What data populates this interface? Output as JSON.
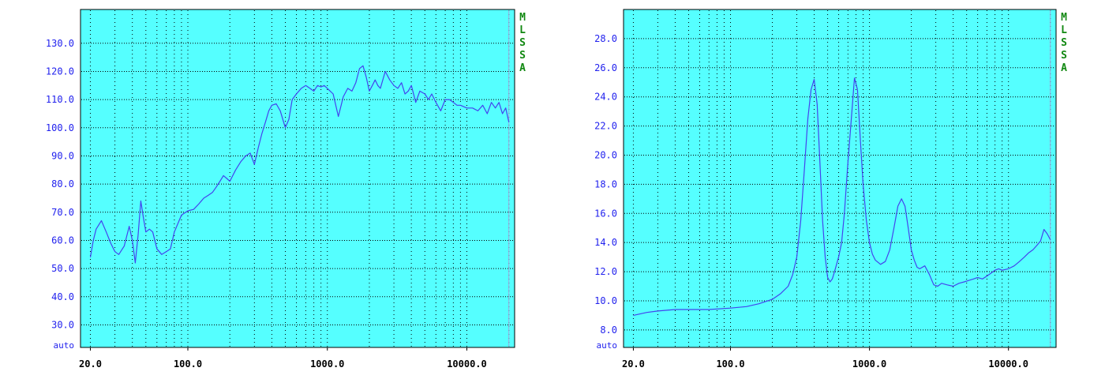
{
  "chart_data": [
    {
      "type": "line",
      "title": "",
      "xlabel": "",
      "ylabel": "",
      "xscale": "log",
      "xlim": [
        17,
        22000
      ],
      "ylim": [
        22,
        142
      ],
      "grid": true,
      "ytick_labels": [
        "130.0",
        "120.0",
        "110.0",
        "100.0",
        "90.0",
        "80.0",
        "70.0",
        "60.0",
        "50.0",
        "40.0",
        "30.0"
      ],
      "ytick_values": [
        130,
        120,
        110,
        100,
        90,
        80,
        70,
        60,
        50,
        40,
        30
      ],
      "ybottom_label": "auto",
      "xtick_labels": [
        "20.0",
        "100.0",
        "1000.0",
        "10000.0"
      ],
      "xtick_values": [
        20,
        100,
        1000,
        10000
      ],
      "side_label": [
        "M",
        "L",
        "S",
        "S",
        "A"
      ],
      "colors": {
        "background": "#55ffff",
        "line": "#4444ee",
        "axis_labels": "#2222ee",
        "side_label": "#118811"
      },
      "series": [
        {
          "x": [
            20,
            21,
            22,
            24,
            26,
            28,
            30,
            32,
            35,
            38,
            40,
            42,
            44,
            46,
            48,
            50,
            53,
            56,
            60,
            65,
            70,
            75,
            80,
            90,
            100,
            110,
            120,
            130,
            140,
            150,
            160,
            170,
            180,
            190,
            200,
            220,
            240,
            260,
            280,
            300,
            320,
            340,
            360,
            380,
            400,
            430,
            460,
            500,
            530,
            560,
            600,
            650,
            700,
            750,
            800,
            850,
            900,
            950,
            1000,
            1100,
            1200,
            1300,
            1400,
            1500,
            1600,
            1700,
            1800,
            1900,
            2000,
            2100,
            2200,
            2300,
            2400,
            2600,
            2800,
            3000,
            3200,
            3400,
            3600,
            3800,
            4000,
            4300,
            4600,
            5000,
            5300,
            5600,
            6000,
            6500,
            7000,
            7500,
            8000,
            8500,
            9000,
            10000,
            11000,
            12000,
            13000,
            14000,
            15000,
            16000,
            17000,
            18000,
            19000,
            20000
          ],
          "y": [
            54,
            60,
            64,
            67,
            63,
            59,
            56,
            55,
            58,
            65,
            60,
            52,
            62,
            74,
            68,
            63,
            64,
            63,
            57,
            55,
            56,
            57,
            63,
            69,
            70.5,
            71,
            73,
            75,
            76,
            77,
            79,
            81,
            83,
            82,
            81,
            85,
            88,
            90,
            91,
            87,
            93,
            98,
            102,
            106,
            108,
            108.5,
            106,
            100,
            103,
            110,
            112,
            114,
            115,
            114,
            113,
            115,
            114.5,
            115,
            114,
            112,
            104,
            111,
            114,
            113,
            116,
            121,
            122,
            118,
            113,
            115,
            117,
            115,
            114,
            120,
            117,
            115,
            114,
            116,
            112,
            113,
            115,
            109,
            113,
            112,
            110,
            112,
            109,
            106,
            110,
            110,
            109,
            108,
            108,
            107,
            107,
            106,
            108,
            105,
            109,
            107,
            109,
            105,
            107,
            102
          ]
        }
      ]
    },
    {
      "type": "line",
      "title": "",
      "xlabel": "",
      "ylabel": "",
      "xscale": "log",
      "xlim": [
        17,
        22000
      ],
      "ylim": [
        6.8,
        30.0
      ],
      "grid": true,
      "ytick_labels": [
        "28.0",
        "26.0",
        "24.0",
        "22.0",
        "20.0",
        "18.0",
        "16.0",
        "14.0",
        "12.0",
        "10.0",
        "8.0"
      ],
      "ytick_values": [
        28,
        26,
        24,
        22,
        20,
        18,
        16,
        14,
        12,
        10,
        8
      ],
      "ybottom_label": "auto",
      "xtick_labels": [
        "20.0",
        "100.0",
        "1000.0",
        "10000.0"
      ],
      "xtick_values": [
        20,
        100,
        1000,
        10000
      ],
      "side_label": [
        "M",
        "L",
        "S",
        "S",
        "A"
      ],
      "colors": {
        "background": "#55ffff",
        "line": "#4444ee",
        "axis_labels": "#2222ee",
        "side_label": "#118811"
      },
      "series": [
        {
          "x": [
            20,
            25,
            30,
            40,
            50,
            70,
            100,
            130,
            160,
            200,
            230,
            260,
            280,
            300,
            320,
            340,
            360,
            380,
            400,
            420,
            440,
            460,
            480,
            500,
            520,
            540,
            560,
            580,
            600,
            630,
            660,
            700,
            740,
            780,
            820,
            860,
            900,
            950,
            1000,
            1050,
            1100,
            1200,
            1300,
            1400,
            1500,
            1600,
            1700,
            1800,
            1900,
            2000,
            2100,
            2200,
            2300,
            2500,
            2700,
            2900,
            3100,
            3300,
            3600,
            4000,
            4400,
            4800,
            5200,
            5600,
            6000,
            6500,
            7000,
            7500,
            8000,
            8500,
            9000,
            10000,
            11000,
            12000,
            13000,
            14000,
            15000,
            16000,
            17000,
            18000,
            19000,
            20000
          ],
          "y": [
            9.0,
            9.2,
            9.3,
            9.4,
            9.4,
            9.4,
            9.5,
            9.6,
            9.8,
            10.1,
            10.5,
            11.0,
            11.8,
            13.0,
            15.5,
            19.0,
            22.5,
            24.5,
            25.2,
            23.5,
            19.5,
            15.5,
            13.0,
            11.6,
            11.3,
            11.5,
            12.0,
            12.5,
            13.0,
            14.0,
            16.0,
            19.5,
            22.5,
            25.3,
            24.5,
            21.0,
            18.0,
            15.5,
            14.0,
            13.2,
            12.8,
            12.5,
            12.7,
            13.5,
            15.0,
            16.5,
            17.0,
            16.5,
            15.0,
            13.5,
            12.8,
            12.3,
            12.2,
            12.4,
            11.8,
            11.1,
            11.0,
            11.2,
            11.1,
            11.0,
            11.2,
            11.3,
            11.4,
            11.5,
            11.6,
            11.5,
            11.7,
            11.9,
            12.1,
            12.2,
            12.1,
            12.2,
            12.4,
            12.7,
            13.0,
            13.3,
            13.5,
            13.8,
            14.1,
            14.9,
            14.6,
            14.2
          ]
        }
      ]
    }
  ]
}
